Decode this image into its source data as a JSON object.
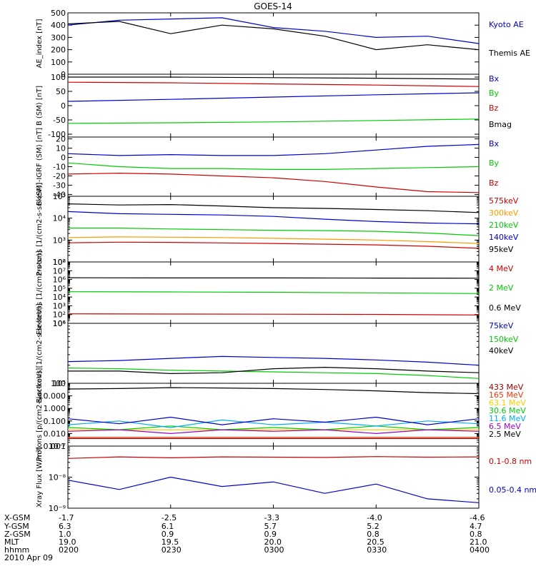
{
  "title": "GOES-14",
  "date": "2010 Apr 09",
  "footer": {
    "rows": [
      {
        "label": "X-GSM",
        "values": [
          "-1.7",
          "-2.5",
          "-3.3",
          "-4.0",
          "-4.6"
        ]
      },
      {
        "label": "Y-GSM",
        "values": [
          "6.3",
          "6.1",
          "5.7",
          "5.2",
          "4.7"
        ]
      },
      {
        "label": "Z-GSM",
        "values": [
          "1.0",
          "0.9",
          "0.9",
          "0.8",
          "0.8"
        ]
      },
      {
        "label": "MLT",
        "values": [
          "19.0",
          "19.5",
          "20.0",
          "20.5",
          "21.0"
        ]
      },
      {
        "label": "hhmm",
        "values": [
          "0200",
          "0230",
          "0300",
          "0330",
          "0400"
        ]
      }
    ]
  },
  "chart_data": [
    {
      "type": "line",
      "ylabel": "AE_index [nT]",
      "scale": "linear",
      "ylim": [
        0,
        500
      ],
      "ytick_labels": [
        "0",
        "100",
        "200",
        "300",
        "400",
        "500"
      ],
      "ytick_values": [
        0,
        100,
        200,
        300,
        400,
        500
      ],
      "x_hours": [
        2.0,
        2.25,
        2.5,
        2.75,
        3.0,
        3.25,
        3.5,
        3.75,
        4.0
      ],
      "series": [
        {
          "name": "Kyoto AE",
          "color": "#0000cc",
          "values": [
            400,
            440,
            450,
            460,
            380,
            350,
            300,
            310,
            250
          ]
        },
        {
          "name": "Themis AE",
          "color": "#000000",
          "values": [
            410,
            430,
            330,
            400,
            370,
            310,
            200,
            240,
            200
          ]
        }
      ]
    },
    {
      "type": "line",
      "ylabel": "B (SM) [nT]",
      "scale": "linear",
      "ylim": [
        -110,
        110
      ],
      "ytick_labels": [
        "-100",
        "-50",
        "0",
        "50",
        "100"
      ],
      "ytick_values": [
        -100,
        -50,
        0,
        50,
        100
      ],
      "x_hours": [
        2.0,
        2.5,
        3.0,
        3.5,
        4.0
      ],
      "series": [
        {
          "name": "Bx",
          "color": "#0000cc",
          "values": [
            15,
            22,
            30,
            38,
            45
          ]
        },
        {
          "name": "By",
          "color": "#00cc00",
          "values": [
            -62,
            -60,
            -57,
            -52,
            -47
          ]
        },
        {
          "name": "Bz",
          "color": "#cc0000",
          "values": [
            82,
            80,
            76,
            72,
            67
          ]
        },
        {
          "name": "Bmag",
          "color": "#000000",
          "values": [
            100,
            100,
            98,
            96,
            93
          ]
        }
      ]
    },
    {
      "type": "line",
      "ylabel": "B (SM)-IGRF (SM) [nT]",
      "scale": "linear",
      "ylim": [
        -42,
        22
      ],
      "ytick_labels": [
        "-40",
        "-30",
        "-20",
        "-10",
        "0",
        "10",
        "20"
      ],
      "ytick_values": [
        -40,
        -30,
        -20,
        -10,
        0,
        10,
        20
      ],
      "x_hours": [
        2.0,
        2.25,
        2.5,
        2.75,
        3.0,
        3.25,
        3.5,
        3.75,
        4.0
      ],
      "series": [
        {
          "name": "Bx",
          "color": "#0000cc",
          "values": [
            4,
            2,
            3,
            2,
            2,
            4,
            8,
            12,
            14
          ]
        },
        {
          "name": "By",
          "color": "#00cc00",
          "values": [
            -6,
            -10,
            -12,
            -12,
            -13,
            -13,
            -12,
            -11,
            -10
          ]
        },
        {
          "name": "Bz",
          "color": "#cc0000",
          "values": [
            -18,
            -17,
            -18,
            -20,
            -22,
            -26,
            -32,
            -37,
            -38
          ]
        }
      ]
    },
    {
      "type": "line",
      "ylabel": "Protons [1/(cm2-s-sr-keV)]",
      "scale": "log",
      "ylim": [
        100,
        100000
      ],
      "ytick_labels": [
        "10²",
        "10³",
        "10⁴",
        "10⁵"
      ],
      "ytick_values": [
        100,
        1000,
        10000,
        100000
      ],
      "x_hours": [
        2.0,
        2.25,
        2.5,
        2.75,
        3.0,
        3.25,
        3.5,
        3.75,
        4.0
      ],
      "series": [
        {
          "name": "575keV",
          "color": "#cc0000",
          "values": [
            750,
            800,
            780,
            740,
            700,
            650,
            600,
            520,
            420
          ]
        },
        {
          "name": "300keV",
          "color": "#ff9900",
          "values": [
            1300,
            1400,
            1350,
            1300,
            1200,
            1100,
            1000,
            850,
            700
          ]
        },
        {
          "name": "210keV",
          "color": "#00cc00",
          "values": [
            3500,
            3500,
            3200,
            3000,
            2800,
            2700,
            2500,
            2100,
            1600
          ]
        },
        {
          "name": "140keV",
          "color": "#0000cc",
          "values": [
            20000,
            16000,
            15000,
            14000,
            12000,
            9000,
            7000,
            6000,
            5500
          ]
        },
        {
          "name": "95keV",
          "color": "#000000",
          "values": [
            45000,
            40000,
            42000,
            36000,
            30000,
            28000,
            25000,
            22000,
            18000
          ]
        }
      ]
    },
    {
      "type": "line",
      "ylabel": "Electrons [1/(cm2-s-sr)]",
      "scale": "log",
      "ylim": [
        10,
        100000000
      ],
      "ytick_labels": [
        "10¹",
        "10²",
        "10³",
        "10⁴",
        "10⁵",
        "10⁶",
        "10⁷",
        "10⁸"
      ],
      "ytick_values": [
        10,
        100,
        1000,
        10000,
        100000,
        1000000,
        10000000,
        100000000
      ],
      "x_hours": [
        2.0,
        2.5,
        3.0,
        3.5,
        4.0
      ],
      "series": [
        {
          "name": "4 MeV",
          "color": "#cc0000",
          "values": [
            120,
            115,
            110,
            105,
            90
          ]
        },
        {
          "name": "2 MeV",
          "color": "#00cc00",
          "values": [
            40000,
            38000,
            35000,
            30000,
            25000
          ]
        },
        {
          "name": "0.6 MeV",
          "color": "#000000",
          "values": [
            1600000,
            1500000,
            1500000,
            1450000,
            1400000
          ]
        }
      ]
    },
    {
      "type": "line",
      "ylabel": "Electrons [1/(cm2-s-sr-keV)]",
      "scale": "log",
      "ylim": [
        100000,
        1000000
      ],
      "ytick_labels": [
        "10⁵",
        "10⁶"
      ],
      "ytick_values": [
        100000,
        1000000
      ],
      "x_hours": [
        2.0,
        2.25,
        2.5,
        2.75,
        3.0,
        3.25,
        3.5,
        3.75,
        4.0
      ],
      "series": [
        {
          "name": "75keV",
          "color": "#0000cc",
          "values": [
            230000,
            240000,
            260000,
            280000,
            270000,
            260000,
            245000,
            225000,
            200000
          ]
        },
        {
          "name": "150keV",
          "color": "#00cc00",
          "values": [
            180000,
            175000,
            165000,
            160000,
            155000,
            150000,
            145000,
            135000,
            120000
          ]
        },
        {
          "name": "40keV",
          "color": "#000000",
          "values": [
            160000,
            160000,
            145000,
            150000,
            175000,
            185000,
            175000,
            160000,
            150000
          ]
        }
      ]
    },
    {
      "type": "line",
      "ylabel": "Protons [p/(cm2-s-sr-keV)]",
      "scale": "log",
      "ylim": [
        0.001,
        100
      ],
      "ytick_labels": [
        "0.001",
        "0.010",
        "0.100",
        "1.000",
        "10.000",
        "100"
      ],
      "ytick_values": [
        0.001,
        0.01,
        0.1,
        1,
        10,
        100
      ],
      "x_hours": [
        2.0,
        2.25,
        2.5,
        2.75,
        3.0,
        3.25,
        3.5,
        3.75,
        4.0
      ],
      "series": [
        {
          "name": "433 MeV",
          "color": "#990000",
          "values": [
            0.004,
            0.004,
            0.004,
            0.004,
            0.004,
            0.004,
            0.004,
            0.004,
            0.004
          ]
        },
        {
          "name": "165 MeV",
          "color": "#ff3300",
          "values": [
            0.005,
            0.005,
            0.005,
            0.005,
            0.005,
            0.005,
            0.005,
            0.005,
            0.005
          ]
        },
        {
          "name": "63.1 MeV",
          "color": "#ffcc00",
          "values": [
            0.02,
            0.02,
            0.02,
            0.02,
            0.02,
            0.02,
            0.02,
            0.02,
            0.02
          ]
        },
        {
          "name": "30.6 MeV",
          "color": "#00cc00",
          "values": [
            0.03,
            0.02,
            0.04,
            0.02,
            0.03,
            0.02,
            0.04,
            0.02,
            0.03
          ]
        },
        {
          "name": "11.6 MeV",
          "color": "#00aaff",
          "values": [
            0.05,
            0.1,
            0.03,
            0.12,
            0.05,
            0.08,
            0.04,
            0.1,
            0.06
          ]
        },
        {
          "name": "6.5 MeV",
          "color": "#9900cc",
          "values": [
            0.015,
            0.02,
            0.01,
            0.02,
            0.015,
            0.02,
            0.01,
            0.02,
            0.015
          ]
        },
        {
          "name": "2.5 MeV",
          "color": "#000000",
          "values": [
            35,
            38,
            45,
            42,
            38,
            32,
            25,
            18,
            15
          ]
        },
        {
          "name": "",
          "color": "#0000cc",
          "values": [
            0.15,
            0.06,
            0.2,
            0.05,
            0.15,
            0.08,
            0.2,
            0.05,
            0.15
          ]
        }
      ]
    },
    {
      "type": "line",
      "ylabel": "Xray Flux [W/m²]",
      "scale": "log",
      "ylim": [
        1e-09,
        1e-07
      ],
      "ytick_labels": [
        "10⁻⁹",
        "10⁻⁸",
        "10⁻⁷"
      ],
      "ytick_values": [
        1e-09,
        1e-08,
        1e-07
      ],
      "x_hours": [
        2.0,
        2.25,
        2.5,
        2.75,
        3.0,
        3.25,
        3.5,
        3.75,
        4.0
      ],
      "series": [
        {
          "name": "0.1-0.8 nm",
          "color": "#cc0000",
          "values": [
            4e-08,
            4.5e-08,
            4.2e-08,
            4.5e-08,
            4.4e-08,
            4.3e-08,
            4.6e-08,
            4.4e-08,
            4.5e-08
          ]
        },
        {
          "name": "0.05-0.4 nm",
          "color": "#0000cc",
          "values": [
            8e-09,
            4e-09,
            1e-08,
            5e-09,
            7e-09,
            3e-09,
            6e-09,
            2e-09,
            1.5e-09
          ]
        }
      ]
    }
  ]
}
